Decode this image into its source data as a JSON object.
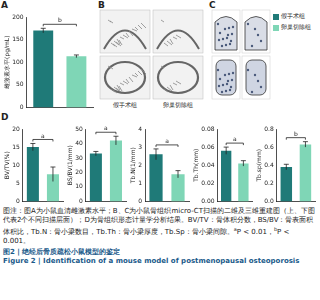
{
  "panels": [
    "A",
    "B",
    "C",
    "D"
  ],
  "legend": [
    {
      "name": "假手术组",
      "color": "#1f7a78"
    },
    {
      "name": "卵巢切除组",
      "color": "#7fd6b6"
    }
  ],
  "images": {
    "B": {
      "labels": [
        "假手术组",
        "卵巢切除组"
      ]
    },
    "C": {
      "labels": []
    }
  },
  "chart_data": [
    {
      "panel": "A",
      "type": "bar",
      "y_label": "雌激素水平(pg/mL)",
      "categories": [
        "假手术组",
        "卵巢切除组"
      ],
      "values": [
        170,
        113
      ],
      "errors": [
        5,
        3
      ],
      "colors": [
        "#1f7a78",
        "#7fd6b6"
      ],
      "ylim": [
        0,
        200
      ],
      "yticks": [
        0,
        50,
        100,
        150,
        200
      ],
      "grid": false,
      "tick_labels": "y",
      "annotations": [
        {
          "text": "b"
        }
      ]
    },
    {
      "panel": "D",
      "type": "bar",
      "y_label": "BV/TV(%)",
      "categories": [
        "假手术组",
        "卵巢切除组"
      ],
      "values": [
        15,
        7.5
      ],
      "errors": [
        1,
        2
      ],
      "colors": [
        "#1f7a78",
        "#7fd6b6"
      ],
      "ylim": [
        0,
        20
      ],
      "yticks": [
        0,
        5,
        10,
        15,
        20
      ],
      "grid": false,
      "tick_labels": "y",
      "annotations": [
        {
          "text": "a"
        }
      ]
    },
    {
      "panel": "D",
      "type": "bar",
      "y_label": "BS/BV(1/mm)",
      "categories": [
        "假手术组",
        "卵巢切除组"
      ],
      "values": [
        33,
        42
      ],
      "errors": [
        1.5,
        3
      ],
      "colors": [
        "#1f7a78",
        "#7fd6b6"
      ],
      "ylim": [
        0,
        50
      ],
      "yticks": [
        0,
        10,
        20,
        30,
        40,
        50
      ],
      "grid": false,
      "tick_labels": "y",
      "annotations": [
        {
          "text": "a"
        }
      ]
    },
    {
      "panel": "D",
      "type": "bar",
      "y_label": "Tb.N(1/mm)",
      "categories": [
        "假手术组",
        "卵巢切除组"
      ],
      "values": [
        2.6,
        1.5
      ],
      "errors": [
        0.3,
        0.2
      ],
      "colors": [
        "#1f7a78",
        "#7fd6b6"
      ],
      "ylim": [
        0,
        4
      ],
      "yticks": [
        0,
        1,
        2,
        3,
        4
      ],
      "grid": false,
      "tick_labels": "y",
      "annotations": [
        {
          "text": "a"
        }
      ]
    },
    {
      "panel": "D",
      "type": "bar",
      "y_label": "Tb.Th(mm)",
      "categories": [
        "假手术组",
        "卵巢切除组"
      ],
      "values": [
        0.056,
        0.042
      ],
      "errors": [
        0.004,
        0.003
      ],
      "colors": [
        "#1f7a78",
        "#7fd6b6"
      ],
      "ylim": [
        0,
        0.08
      ],
      "yticks": [
        {
          "value": 0,
          "label": "0.00"
        },
        {
          "value": 0.02,
          "label": "0.02"
        },
        {
          "value": 0.04,
          "label": "0.04"
        },
        {
          "value": 0.06,
          "label": "0.06"
        },
        {
          "value": 0.08,
          "label": "0.08"
        }
      ],
      "grid": false,
      "tick_labels": "y",
      "annotations": [
        {
          "text": "a"
        }
      ]
    },
    {
      "panel": "D",
      "type": "bar",
      "y_label": "Tb.sp(mm)",
      "categories": [
        "假手术组",
        "卵巢切除组"
      ],
      "values": [
        0.38,
        0.63
      ],
      "errors": [
        0.03,
        0.03
      ],
      "colors": [
        "#1f7a78",
        "#7fd6b6"
      ],
      "ylim": [
        0,
        0.8
      ],
      "yticks": [
        {
          "value": 0,
          "label": "0.0"
        },
        {
          "value": 0.2,
          "label": "0.2"
        },
        {
          "value": 0.4,
          "label": "0.4"
        },
        {
          "value": 0.6,
          "label": "0.6"
        },
        {
          "value": 0.8,
          "label": "0.8"
        }
      ],
      "grid": false,
      "tick_labels": "y",
      "annotations": [
        {
          "text": "b"
        }
      ]
    }
  ],
  "caption": {
    "text": "图注：图A为小鼠血清雌激素水平；B、C为小鼠骨组织micro-CT扫描的二维及三维重建图（上、下图代表2个不同扫描层面）；D为骨组织形态计量学分析结果。BV/TV：骨体积分数，BS/BV：骨表面积体积比，Tb.N：骨小梁数目，Tb.Th：骨小梁厚度，Tb.Sp：骨小梁间隙。",
    "notes": [
      {
        "mark": "a",
        "text": "P < 0.01，"
      },
      {
        "mark": "b",
        "text": "P < 0.001。"
      }
    ],
    "title_zh": "图2 | 绝经后骨质疏松小鼠模型的鉴定",
    "title_en": "Figure 2 | Identification of a mouse model of postmenopausal osteoporosis"
  }
}
